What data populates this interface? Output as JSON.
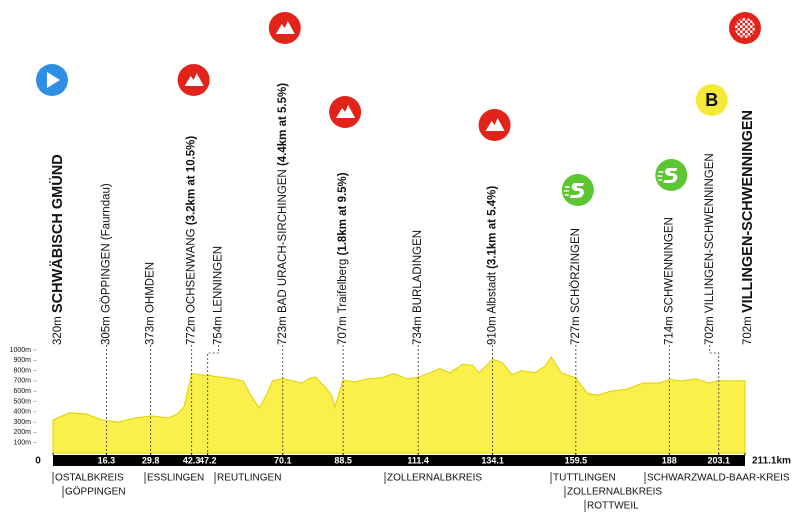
{
  "chart_data": {
    "type": "area",
    "color": "#fbf04b",
    "xlim": [
      0,
      211.1
    ],
    "ylim": [
      0,
      1000
    ],
    "yticks": [
      {
        "value": 100,
        "label": "100m"
      },
      {
        "value": 200,
        "label": "200m"
      },
      {
        "value": 300,
        "label": "300m"
      },
      {
        "value": 400,
        "label": "400m"
      },
      {
        "value": 500,
        "label": "500m"
      },
      {
        "value": 600,
        "label": "600m"
      },
      {
        "value": 700,
        "label": "700m"
      },
      {
        "value": 800,
        "label": "800m"
      },
      {
        "value": 900,
        "label": "900m"
      },
      {
        "value": 1000,
        "label": "1000m"
      }
    ],
    "xticks": [
      0,
      16.3,
      29.8,
      42.3,
      47.2,
      70.1,
      88.5,
      111.4,
      134.1,
      159.5,
      188,
      203.1,
      {
        "value": 211.1,
        "label": "211.1km"
      }
    ],
    "x": [
      0,
      5,
      10,
      15,
      20,
      25,
      30,
      35,
      38,
      40,
      42.3,
      45,
      47.2,
      50,
      55,
      58,
      60,
      62,
      63,
      65,
      67,
      70.1,
      73,
      76,
      78,
      80,
      83,
      85,
      86,
      88.5,
      92,
      96,
      100,
      104,
      108,
      111.4,
      115,
      118,
      121,
      125,
      128,
      130,
      134.1,
      137,
      140,
      143,
      147,
      150,
      152,
      155,
      159.5,
      163,
      166,
      170,
      175,
      180,
      185,
      188,
      192,
      196,
      200,
      203.1,
      207,
      211.1
    ],
    "values": [
      320,
      390,
      380,
      320,
      300,
      340,
      360,
      340,
      380,
      450,
      772,
      760,
      754,
      740,
      720,
      700,
      580,
      480,
      440,
      560,
      700,
      723,
      700,
      680,
      720,
      740,
      640,
      560,
      450,
      707,
      690,
      720,
      730,
      770,
      720,
      734,
      780,
      820,
      780,
      860,
      850,
      780,
      910,
      880,
      760,
      800,
      780,
      840,
      930,
      780,
      727,
      580,
      560,
      600,
      620,
      680,
      680,
      714,
      700,
      720,
      680,
      702,
      700,
      702
    ],
    "waypoints": [
      {
        "altitude": "320m",
        "name": "SCHWÄBISCH GMÜND",
        "bold": true,
        "icon": "start"
      },
      {
        "altitude": "305m",
        "name": "GÖPPINGEN (Faurndau)"
      },
      {
        "altitude": "373m",
        "name": "OHMDEN"
      },
      {
        "altitude": "772m",
        "name": "OCHSENWANG",
        "climb": "(3.2km at 10.5%)",
        "icon": "mountain"
      },
      {
        "altitude": "754m",
        "name": "LENNINGEN"
      },
      {
        "altitude": "723m",
        "name": "BAD URACH-SIRCHINGEN",
        "climb": "(4.4km at 5.5%)",
        "icon": "mountain"
      },
      {
        "altitude": "707m",
        "name": "Traifelberg",
        "climb": "(1.8km at 9.5%)",
        "icon": "mountain"
      },
      {
        "altitude": "734m",
        "name": "BURLADINGEN"
      },
      {
        "altitude": "910m",
        "name": "Albstadt",
        "climb": "(3.1km at 5.4%)",
        "icon": "mountain"
      },
      {
        "altitude": "727m",
        "name": "SCHÖRZINGEN",
        "icon": "sprint"
      },
      {
        "altitude": "714m",
        "name": "SCHWENNINGEN",
        "icon": "sprint"
      },
      {
        "altitude": "702m",
        "name": "VILLINGEN-SCHWENNINGEN",
        "icon": "bonus",
        "badge": "B"
      },
      {
        "altitude": "702m",
        "name": "VILLINGEN-SCHWENNINGEN",
        "bold": true,
        "icon": "finish"
      }
    ],
    "regions": [
      "OSTALBKREIS",
      "GÖPPINGEN",
      "ESSLINGEN",
      "REUTLINGEN",
      "ZOLLERNALBKREIS",
      "TUTTLINGEN",
      "ZOLLERNALBKREIS",
      "ROTTWEIL",
      "SCHWARZWALD-BAAR-KREIS"
    ]
  }
}
